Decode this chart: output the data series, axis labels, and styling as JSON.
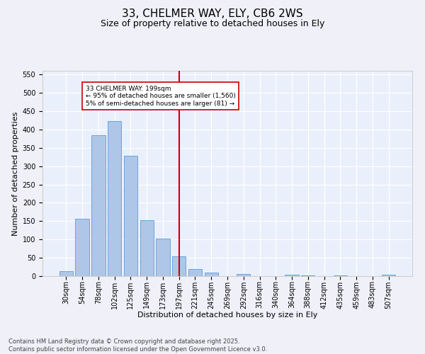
{
  "title": "33, CHELMER WAY, ELY, CB6 2WS",
  "subtitle": "Size of property relative to detached houses in Ely",
  "xlabel": "Distribution of detached houses by size in Ely",
  "ylabel": "Number of detached properties",
  "bins": [
    "30sqm",
    "54sqm",
    "78sqm",
    "102sqm",
    "125sqm",
    "149sqm",
    "173sqm",
    "197sqm",
    "221sqm",
    "245sqm",
    "269sqm",
    "292sqm",
    "316sqm",
    "340sqm",
    "364sqm",
    "388sqm",
    "412sqm",
    "435sqm",
    "459sqm",
    "483sqm",
    "507sqm"
  ],
  "values": [
    13,
    157,
    385,
    422,
    328,
    153,
    103,
    55,
    20,
    10,
    0,
    6,
    0,
    0,
    3,
    1,
    0,
    1,
    0,
    0,
    3
  ],
  "bar_color": "#aec6e8",
  "bar_edge_color": "#5b9bd5",
  "vline_x": 7,
  "vline_color": "#cc0000",
  "annotation_text": "33 CHELMER WAY: 199sqm\n← 95% of detached houses are smaller (1,560)\n5% of semi-detached houses are larger (81) →",
  "annotation_box_color": "#ffffff",
  "annotation_box_edge": "#cc0000",
  "ylim": [
    0,
    560
  ],
  "yticks": [
    0,
    50,
    100,
    150,
    200,
    250,
    300,
    350,
    400,
    450,
    500,
    550
  ],
  "bg_color": "#eaf0fb",
  "grid_color": "#ffffff",
  "footer": "Contains HM Land Registry data © Crown copyright and database right 2025.\nContains public sector information licensed under the Open Government Licence v3.0.",
  "title_fontsize": 11,
  "subtitle_fontsize": 9,
  "axis_label_fontsize": 8,
  "tick_fontsize": 7,
  "footer_fontsize": 6
}
